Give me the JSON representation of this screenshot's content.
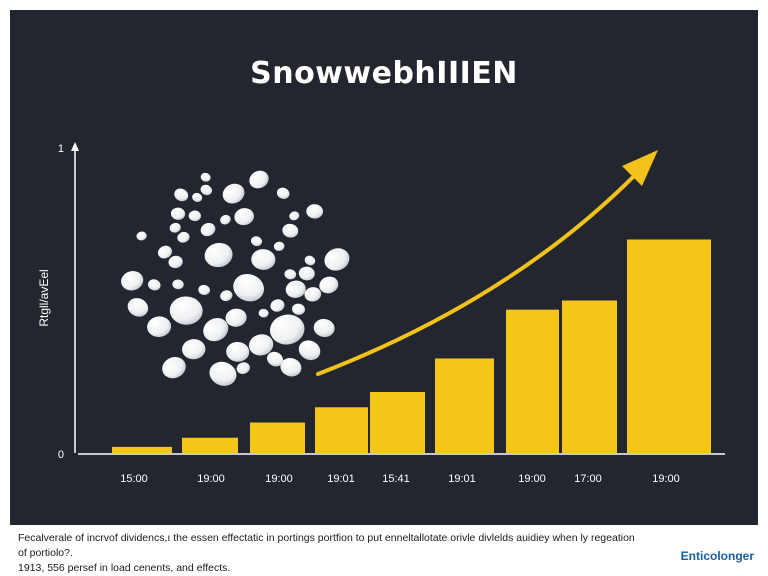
{
  "chart_data": {
    "type": "bar",
    "title": "SnowwebhIIIEN",
    "ylabel": "Rtgll/avEel",
    "y_ticks": [
      {
        "value": 0,
        "label": "0"
      },
      {
        "value": 1,
        "label": "1"
      }
    ],
    "ylim": [
      0,
      1
    ],
    "categories": [
      "15:00",
      "19:00",
      "19:00",
      "19:01",
      "15:41",
      "19:01",
      "19:00",
      "17:00",
      "19:00"
    ],
    "values": [
      0.02,
      0.05,
      0.1,
      0.15,
      0.2,
      0.31,
      0.47,
      0.5,
      0.7
    ],
    "trend_arrow": true,
    "grid": false,
    "legend": "none",
    "colors": {
      "bars": "#f5c518",
      "arrow": "#f2c21b",
      "background": "#23262e",
      "snowball": "#ffffff"
    }
  },
  "caption": {
    "line1": "Fecalverale of incrvof dividencs,ı the essen effectatic in portings portfion to put enneltallotate orivle divlelds auidiey when ly regeation of portiolo?.",
    "line2": "1913, 556 persef in load cenents, and effects."
  },
  "brand": "Enticolonger"
}
